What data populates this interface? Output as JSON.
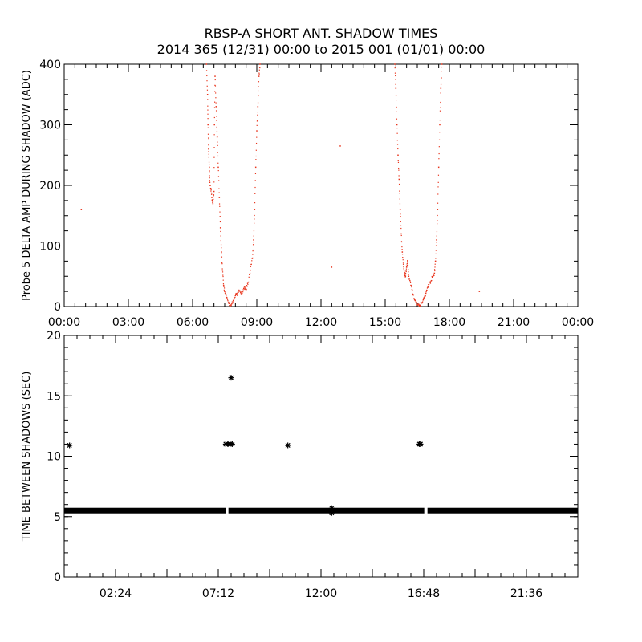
{
  "figure": {
    "title": "RBSP-A SHORT ANT. SHADOW TIMES",
    "subtitle": "2014 365 (12/31) 00:00 to 2015 001 (01/01) 00:00"
  },
  "chart_data": [
    {
      "type": "scatter",
      "ylabel": "Probe 5 DELTA AMP DURING SHADOW (ADC)",
      "xlabel": "",
      "xlim": [
        0,
        24
      ],
      "ylim": [
        0,
        400
      ],
      "x_ticks": [
        "00:00",
        "03:00",
        "06:00",
        "09:00",
        "12:00",
        "15:00",
        "18:00",
        "21:00",
        "00:00"
      ],
      "y_ticks": [
        "0",
        "100",
        "200",
        "300",
        "400"
      ],
      "grid": false,
      "marker_color": "#e8341c",
      "series": [
        {
          "points": [
            [
              0.8,
              160
            ],
            [
              12.5,
              65
            ],
            [
              12.9,
              265
            ],
            [
              19.4,
              25
            ],
            [
              6.65,
              400
            ],
            [
              6.7,
              350
            ],
            [
              6.72,
              300
            ],
            [
              6.75,
              260
            ],
            [
              6.78,
              230
            ],
            [
              6.8,
              205
            ],
            [
              6.85,
              195
            ],
            [
              6.9,
              180
            ],
            [
              6.95,
              170
            ],
            [
              7.0,
              190
            ],
            [
              7.02,
              300
            ],
            [
              7.05,
              380
            ],
            [
              7.1,
              330
            ],
            [
              7.15,
              280
            ],
            [
              7.2,
              230
            ],
            [
              7.25,
              180
            ],
            [
              7.3,
              130
            ],
            [
              7.35,
              90
            ],
            [
              7.4,
              60
            ],
            [
              7.45,
              35
            ],
            [
              7.5,
              25
            ],
            [
              7.6,
              15
            ],
            [
              7.7,
              5
            ],
            [
              7.8,
              2
            ],
            [
              7.9,
              10
            ],
            [
              8.0,
              18
            ],
            [
              8.1,
              22
            ],
            [
              8.2,
              26
            ],
            [
              8.3,
              22
            ],
            [
              8.4,
              30
            ],
            [
              8.5,
              28
            ],
            [
              8.6,
              40
            ],
            [
              8.7,
              60
            ],
            [
              8.8,
              80
            ],
            [
              8.85,
              110
            ],
            [
              8.9,
              160
            ],
            [
              8.95,
              230
            ],
            [
              9.0,
              290
            ],
            [
              9.05,
              330
            ],
            [
              9.1,
              380
            ],
            [
              9.15,
              400
            ],
            [
              15.45,
              400
            ],
            [
              15.5,
              360
            ],
            [
              15.55,
              300
            ],
            [
              15.6,
              250
            ],
            [
              15.65,
              210
            ],
            [
              15.7,
              160
            ],
            [
              15.75,
              120
            ],
            [
              15.8,
              90
            ],
            [
              15.85,
              70
            ],
            [
              15.9,
              55
            ],
            [
              15.95,
              50
            ],
            [
              16.0,
              65
            ],
            [
              16.05,
              75
            ],
            [
              16.1,
              50
            ],
            [
              16.2,
              35
            ],
            [
              16.3,
              20
            ],
            [
              16.4,
              10
            ],
            [
              16.5,
              3
            ],
            [
              16.6,
              1
            ],
            [
              16.7,
              6
            ],
            [
              16.8,
              14
            ],
            [
              16.9,
              22
            ],
            [
              17.0,
              32
            ],
            [
              17.1,
              40
            ],
            [
              17.2,
              48
            ],
            [
              17.3,
              55
            ],
            [
              17.35,
              75
            ],
            [
              17.4,
              110
            ],
            [
              17.45,
              160
            ],
            [
              17.5,
              230
            ],
            [
              17.55,
              300
            ],
            [
              17.6,
              360
            ],
            [
              17.65,
              400
            ]
          ]
        }
      ]
    },
    {
      "type": "scatter",
      "ylabel": "TIME BETWEEN SHADOWS (SEC)",
      "xlabel": "",
      "xlim": [
        0,
        24
      ],
      "ylim": [
        0,
        20
      ],
      "x_ticks": [
        "02:24",
        "07:12",
        "12:00",
        "16:48",
        "21:36"
      ],
      "y_ticks": [
        "0",
        "5",
        "10",
        "15",
        "20"
      ],
      "grid": false,
      "marker": "*",
      "marker_color": "#000000",
      "baseline": {
        "value": 5.5,
        "from": 0,
        "to": 24,
        "gap_at": [
          7.6,
          16.9
        ]
      },
      "series": [
        {
          "points": [
            [
              0.25,
              10.9
            ],
            [
              7.55,
              11.0
            ],
            [
              7.65,
              11.0
            ],
            [
              7.75,
              11.0
            ],
            [
              7.85,
              11.0
            ],
            [
              7.8,
              16.5
            ],
            [
              10.45,
              10.9
            ],
            [
              16.6,
              11.0
            ],
            [
              16.65,
              11.0
            ],
            [
              12.5,
              5.3
            ],
            [
              12.5,
              5.7
            ]
          ]
        }
      ]
    }
  ]
}
